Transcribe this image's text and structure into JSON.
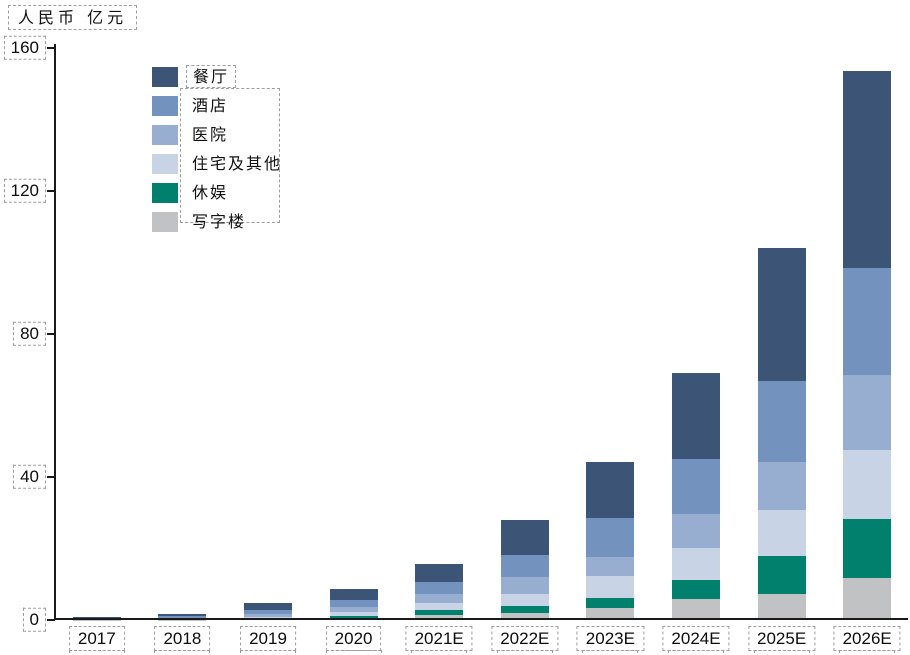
{
  "header": {
    "unit_label": "人民币 亿元"
  },
  "chart_data": {
    "type": "bar",
    "stacked": true,
    "title": "人民币 亿元",
    "xlabel": "",
    "ylabel": "人民币亿元",
    "categories": [
      "2017",
      "2018",
      "2019",
      "2020",
      "2021E",
      "2022E",
      "2023E",
      "2024E",
      "2025E",
      "2026E"
    ],
    "series": [
      {
        "name": "餐厅",
        "color": "#3c5476",
        "values": [
          0.4,
          0.8,
          2.0,
          3.1,
          5.0,
          9.8,
          15.7,
          24.1,
          37.2,
          55.1
        ]
      },
      {
        "name": "酒店",
        "color": "#7392be",
        "values": [
          0.2,
          0.45,
          1.1,
          2.0,
          3.4,
          6.4,
          10.9,
          15.4,
          22.7,
          29.9
        ]
      },
      {
        "name": "医院",
        "color": "#97aed1",
        "values": [
          0.12,
          0.25,
          0.8,
          1.4,
          2.5,
          4.5,
          5.3,
          9.5,
          13.4,
          21.0
        ]
      },
      {
        "name": "住宅及其他",
        "color": "#c9d3e6",
        "values": [
          0.06,
          0.15,
          0.4,
          1.1,
          2.0,
          3.4,
          6.2,
          9.0,
          12.9,
          19.3
        ]
      },
      {
        "name": "休娱",
        "color": "#00806d",
        "values": [
          0.02,
          0.05,
          0.15,
          0.55,
          1.4,
          2.0,
          2.8,
          5.3,
          10.6,
          16.5
        ]
      },
      {
        "name": "写字楼",
        "color": "#c1c2c4",
        "values": [
          0.03,
          0.1,
          0.25,
          0.6,
          1.4,
          2.0,
          3.4,
          5.9,
          7.3,
          11.7
        ]
      }
    ],
    "totals": [
      0.83,
      1.8,
      4.7,
      8.75,
      15.7,
      28.1,
      44.3,
      69.2,
      104.1,
      153.5
    ],
    "yticks": [
      {
        "value": 0,
        "label": "0"
      },
      {
        "value": 40,
        "label": "40"
      },
      {
        "value": 80,
        "label": "80"
      },
      {
        "value": 120,
        "label": "120"
      },
      {
        "value": 160,
        "label": "160"
      }
    ],
    "ylim": [
      0,
      160
    ],
    "grid": false,
    "legend_position": "upper-left-inside",
    "legend_order_note": "legend listed top-of-stack first; bars stack bottom-up in reverse legend order",
    "annotation_style": "gray dashed boxes around all text labels"
  }
}
